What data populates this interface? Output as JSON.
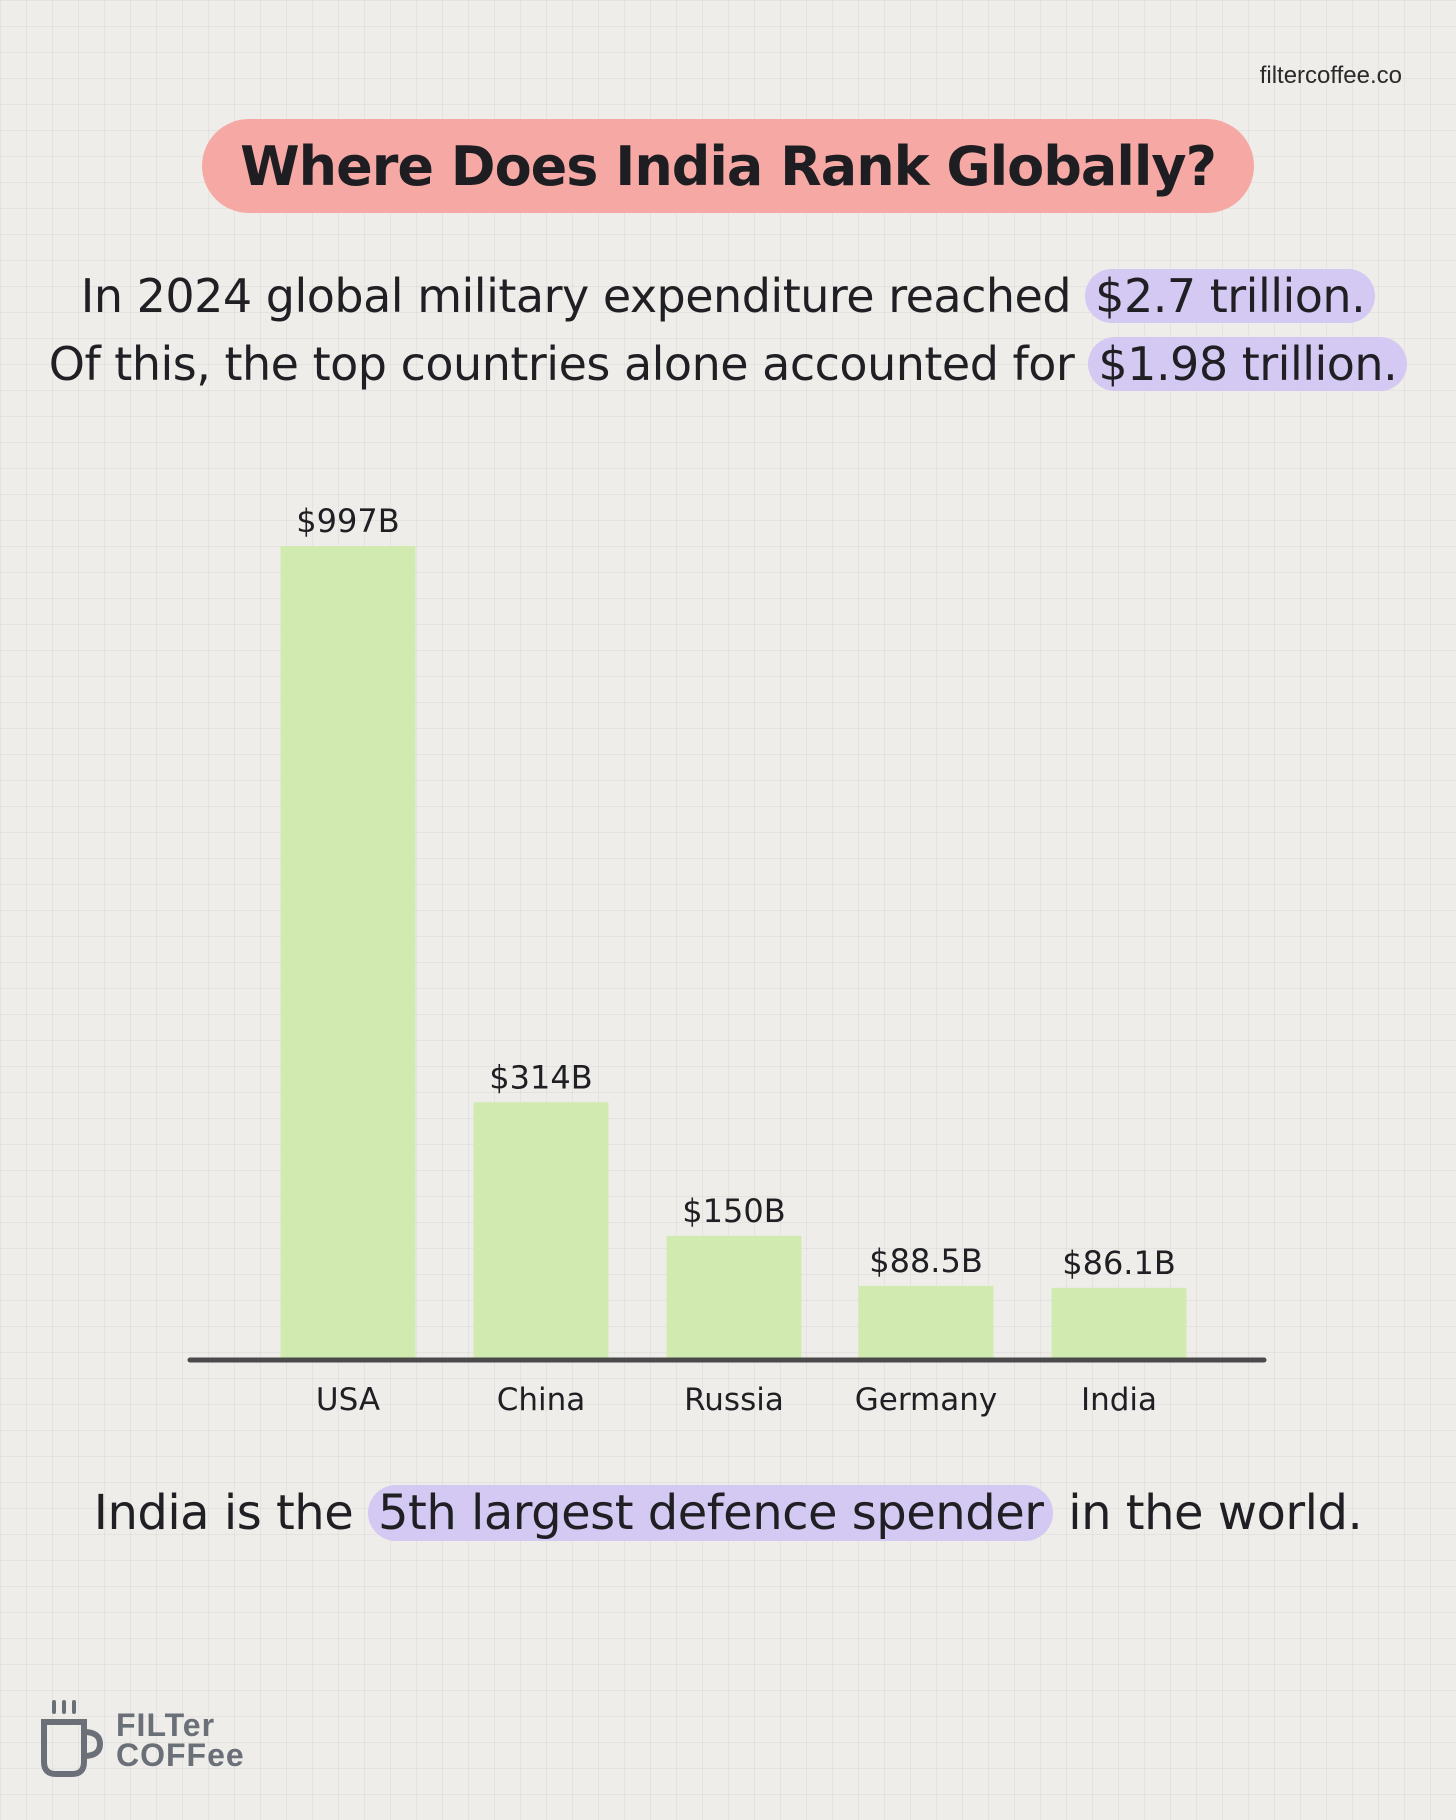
{
  "site": {
    "url": "filtercoffee.co"
  },
  "title": "Where Does India Rank Globally?",
  "intro": {
    "line1_text": "In 2024 global military expenditure reached",
    "line1_highlight": "$2.7 trillion.",
    "line2_text": "Of this, the top countries alone accounted for",
    "line2_highlight": "$1.98 trillion."
  },
  "chart_data": {
    "type": "bar",
    "title": "",
    "xlabel": "",
    "ylabel": "",
    "categories": [
      "USA",
      "China",
      "Russia",
      "Germany",
      "India"
    ],
    "values": [
      997,
      314,
      150,
      88.5,
      86.1
    ],
    "value_labels": [
      "$997B",
      "$314B",
      "$150B",
      "$88.5B",
      "$86.1B"
    ],
    "ylim": [
      0,
      997
    ],
    "grid": false,
    "legend": "none"
  },
  "footer": {
    "text_before": "India is the",
    "highlight": "5th largest defence spender",
    "text_after": "in the world."
  },
  "logo": {
    "line1": "FILTer",
    "line2": "COFFee",
    "icon": "coffee-cup-icon"
  },
  "colors": {
    "bar": "#d1eab0",
    "axis": "#4a4a4a",
    "title_bg": "#f6a9a4",
    "highlight": "#d4c9f2",
    "logo": "#6b7078"
  }
}
